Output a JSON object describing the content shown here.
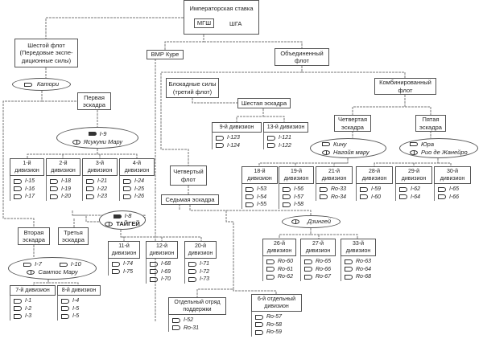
{
  "hq": {
    "title": "Императорская ставка",
    "mgsh": "МГШ",
    "shga": "ШГА"
  },
  "sixth_fleet": "Шестой флот (Передовые экспе-диционные силы)",
  "katori": "Катори",
  "first_squadron": "Первая эскадра",
  "yasukuni": {
    "sub": "I-9",
    "tender": "Ясукуни Мару"
  },
  "vmr_kure": "ВМР Куре",
  "united_fleet": "Объединенный флот",
  "blockade": "Блокадные силы (третий флот)",
  "combined_fleet": "Комбинированный флот",
  "sixth_squadron": "Шестая эскадра",
  "fourth_squadron": "Четвертая эскадра",
  "fifth_squadron": "Пятая эскадра",
  "kinu": {
    "cruiser": "Кину",
    "tender": "Нагойя мару"
  },
  "yura": {
    "cruiser": "Юра",
    "tender": "Рио де Жанейро"
  },
  "fourth_fleet": "Четвертый флот",
  "seventh_squadron": "Седьмая эскадра",
  "taigei": {
    "sub": "I-8",
    "tender": "ТАЙГЕЙ"
  },
  "second_squadron": "Вторая эскадра",
  "third_squadron": "Третья эскадра",
  "santos": {
    "sub1": "I-7",
    "sub2": "I-10",
    "tender": "Самтос Мару"
  },
  "jingei": "Дзингей",
  "divisions": [
    {
      "title": "1-й дивизион",
      "ships": [
        "I-15",
        "I-16",
        "I-17"
      ]
    },
    {
      "title": "2-й дивизион",
      "ships": [
        "I-18",
        "I-19",
        "I-20"
      ]
    },
    {
      "title": "3-й дивизион",
      "ships": [
        "I-21",
        "I-22",
        "I-23"
      ]
    },
    {
      "title": "4-й дивизион",
      "ships": [
        "I-24",
        "I-25",
        "I-26"
      ]
    },
    {
      "title": "9-й дивизион",
      "ships": [
        "I-123",
        "I-124"
      ]
    },
    {
      "title": "13-й дивизион",
      "ships": [
        "I-121",
        "I-122"
      ]
    },
    {
      "title": "18-й дивизион",
      "ships": [
        "I-53",
        "I-54",
        "I-55"
      ]
    },
    {
      "title": "19-й дивизион",
      "ships": [
        "I-56",
        "I-57",
        "I-58"
      ]
    },
    {
      "title": "21-й дивизион",
      "ships": [
        "Ro-33",
        "Ro-34"
      ]
    },
    {
      "title": "28-й дивизион",
      "ships": [
        "I-59",
        "I-60"
      ]
    },
    {
      "title": "29-й дивизион",
      "ships": [
        "I-62",
        "I-64"
      ]
    },
    {
      "title": "30-й дивизион",
      "ships": [
        "I-65",
        "I-66"
      ]
    },
    {
      "title": "11-й дивизион",
      "ships": [
        "I-74",
        "I-75"
      ]
    },
    {
      "title": "12-й дивизион",
      "ships": [
        "I-68",
        "I-69",
        "I-70"
      ]
    },
    {
      "title": "20-й дивизион",
      "ships": [
        "I-71",
        "I-72",
        "I-73"
      ]
    },
    {
      "title": "7-й дивизион",
      "ships": [
        "I-1",
        "I-2",
        "I-3"
      ]
    },
    {
      "title": "8-й дивизион",
      "ships": [
        "I-4",
        "I-5",
        "I-5"
      ]
    },
    {
      "title": "26-й дивизион",
      "ships": [
        "Ro-60",
        "Ro-61",
        "Ro-62"
      ]
    },
    {
      "title": "27-й дивизион",
      "ships": [
        "Ro-65",
        "Ro-66",
        "Ro-67"
      ]
    },
    {
      "title": "33-й дивизион",
      "ships": [
        "Ro-63",
        "Ro-64",
        "Ro-68"
      ]
    },
    {
      "title": "Отдельный отряд поддержки",
      "ships": [
        "I-52",
        "Ro-31"
      ]
    },
    {
      "title": "6-й отдельный дивизион",
      "ships": [
        "Ro-57",
        "Ro-58",
        "Ro-59"
      ]
    }
  ]
}
